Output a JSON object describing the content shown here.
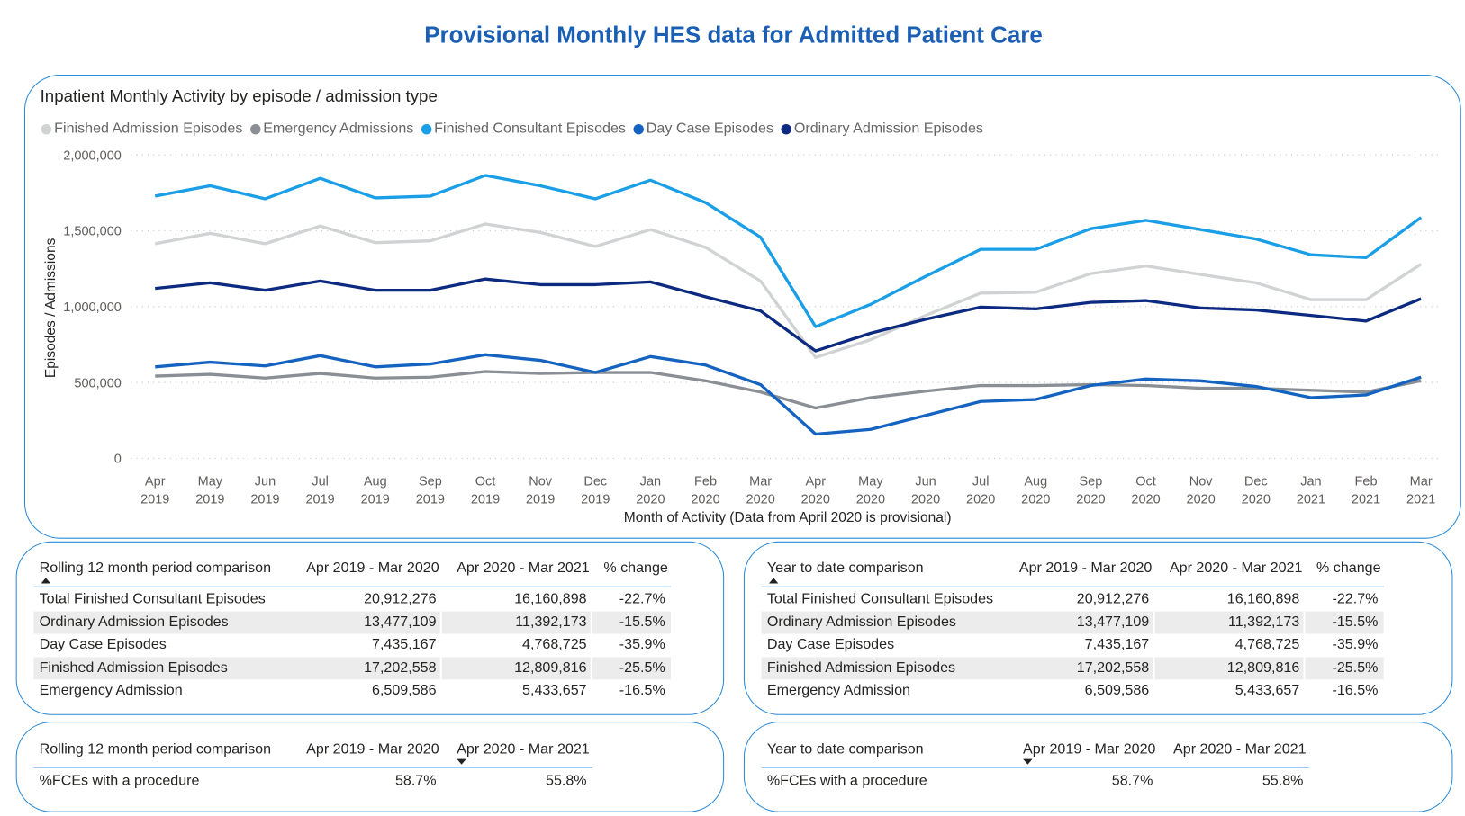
{
  "page_title": "Provisional Monthly HES data for Admitted Patient Care",
  "chart_data": {
    "type": "line",
    "title": "Inpatient Monthly Activity by episode / admission type",
    "xlabel": "Month of Activity (Data from April 2020 is provisional)",
    "ylabel": "Episodes / Admissions",
    "ylim": [
      0,
      2000000
    ],
    "yticks": [
      "0",
      "500,000",
      "1,000,000",
      "1,500,000",
      "2,000,000"
    ],
    "ytick_values": [
      0,
      500000,
      1000000,
      1500000,
      2000000
    ],
    "grid": true,
    "legend_position": "top-left",
    "categories": [
      [
        "Apr",
        "2019"
      ],
      [
        "May",
        "2019"
      ],
      [
        "Jun",
        "2019"
      ],
      [
        "Jul",
        "2019"
      ],
      [
        "Aug",
        "2019"
      ],
      [
        "Sep",
        "2019"
      ],
      [
        "Oct",
        "2019"
      ],
      [
        "Nov",
        "2019"
      ],
      [
        "Dec",
        "2019"
      ],
      [
        "Jan",
        "2020"
      ],
      [
        "Feb",
        "2020"
      ],
      [
        "Mar",
        "2020"
      ],
      [
        "Apr",
        "2020"
      ],
      [
        "May",
        "2020"
      ],
      [
        "Jun",
        "2020"
      ],
      [
        "Jul",
        "2020"
      ],
      [
        "Aug",
        "2020"
      ],
      [
        "Sep",
        "2020"
      ],
      [
        "Oct",
        "2020"
      ],
      [
        "Nov",
        "2020"
      ],
      [
        "Dec",
        "2020"
      ],
      [
        "Jan",
        "2021"
      ],
      [
        "Feb",
        "2021"
      ],
      [
        "Mar",
        "2021"
      ]
    ],
    "series": [
      {
        "name": "Finished Admission Episodes",
        "color": "#d0d2d3",
        "values": [
          1415000,
          1483000,
          1415000,
          1532000,
          1422000,
          1434000,
          1545000,
          1489000,
          1397000,
          1508000,
          1391000,
          1169000,
          665000,
          782000,
          942000,
          1089000,
          1095000,
          1218000,
          1268000,
          1212000,
          1157000,
          1046000,
          1046000,
          1280000
        ]
      },
      {
        "name": "Emergency Admissions",
        "color": "#8a8f96",
        "values": [
          542000,
          554000,
          529000,
          560000,
          529000,
          535000,
          572000,
          560000,
          566000,
          566000,
          511000,
          437000,
          332000,
          400000,
          443000,
          480000,
          480000,
          486000,
          480000,
          462000,
          462000,
          449000,
          437000,
          511000
        ]
      },
      {
        "name": "Finished Consultant Episodes",
        "color": "#1a9fe6",
        "values": [
          1729000,
          1797000,
          1711000,
          1846000,
          1717000,
          1729000,
          1865000,
          1797000,
          1711000,
          1834000,
          1686000,
          1458000,
          868000,
          1015000,
          1200000,
          1378000,
          1378000,
          1514000,
          1569000,
          1508000,
          1446000,
          1342000,
          1323000,
          1588000
        ]
      },
      {
        "name": "Day Case Episodes",
        "color": "#1463c0",
        "values": [
          603000,
          634000,
          609000,
          677000,
          603000,
          622000,
          683000,
          646000,
          566000,
          671000,
          615000,
          486000,
          160000,
          191000,
          283000,
          375000,
          388000,
          480000,
          523000,
          511000,
          474000,
          400000,
          418000,
          535000
        ]
      },
      {
        "name": "Ordinary Admission Episodes",
        "color": "#0c2a80",
        "values": [
          1120000,
          1157000,
          1108000,
          1169000,
          1108000,
          1108000,
          1182000,
          1145000,
          1145000,
          1163000,
          1065000,
          972000,
          708000,
          825000,
          917000,
          997000,
          985000,
          1028000,
          1040000,
          991000,
          978000,
          942000,
          905000,
          1052000
        ]
      }
    ]
  },
  "rolling_table": {
    "headers": [
      "Rolling 12 month period comparison",
      "Apr 2019 - Mar 2020",
      "Apr 2020 - Mar 2021",
      "% change"
    ],
    "rows": [
      [
        "Total Finished Consultant Episodes",
        "20,912,276",
        "16,160,898",
        "-22.7%"
      ],
      [
        "Ordinary Admission Episodes",
        "13,477,109",
        "11,392,173",
        "-15.5%"
      ],
      [
        "Day Case Episodes",
        "7,435,167",
        "4,768,725",
        "-35.9%"
      ],
      [
        "Finished Admission Episodes",
        "17,202,558",
        "12,809,816",
        "-25.5%"
      ],
      [
        "Emergency Admission",
        "6,509,586",
        "5,433,657",
        "-16.5%"
      ]
    ]
  },
  "ytd_table": {
    "headers": [
      "Year to date comparison",
      "Apr 2019 - Mar 2020",
      "Apr 2020 - Mar 2021",
      "% change"
    ],
    "rows": [
      [
        "Total Finished Consultant Episodes",
        "20,912,276",
        "16,160,898",
        "-22.7%"
      ],
      [
        "Ordinary Admission Episodes",
        "13,477,109",
        "11,392,173",
        "-15.5%"
      ],
      [
        "Day Case Episodes",
        "7,435,167",
        "4,768,725",
        "-35.9%"
      ],
      [
        "Finished Admission Episodes",
        "17,202,558",
        "12,809,816",
        "-25.5%"
      ],
      [
        "Emergency Admission",
        "6,509,586",
        "5,433,657",
        "-16.5%"
      ]
    ]
  },
  "rolling_proc": {
    "headers": [
      "Rolling 12 month period comparison",
      "Apr 2019 - Mar 2020",
      "Apr 2020 - Mar 2021"
    ],
    "row": [
      "%FCEs with a procedure",
      "58.7%",
      "55.8%"
    ]
  },
  "ytd_proc": {
    "headers": [
      "Year to date comparison",
      "Apr 2019 - Mar 2020",
      "Apr 2020 - Mar 2021"
    ],
    "row": [
      "%FCEs with a procedure",
      "58.7%",
      "55.8%"
    ]
  }
}
